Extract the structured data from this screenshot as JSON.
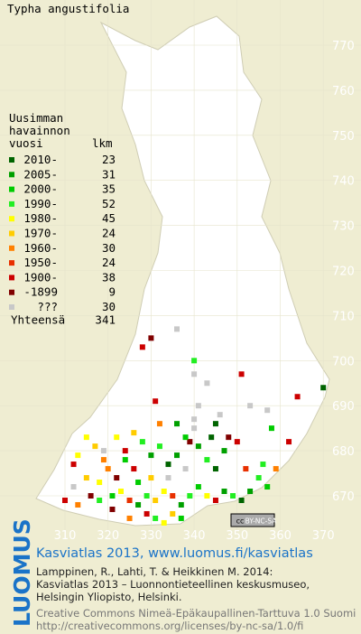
{
  "title": "Typha angustifolia",
  "grid": {
    "north": [
      770,
      760,
      750,
      740,
      730,
      720,
      710,
      700,
      690,
      680,
      670
    ],
    "east": [
      310,
      320,
      330,
      340,
      350,
      360,
      370
    ]
  },
  "legend": {
    "heading": [
      "Uusimman",
      "havainnon",
      "vuosi"
    ],
    "count_heading": "lkm",
    "rows": [
      {
        "label": "2010-",
        "count": 23,
        "color": "#006400"
      },
      {
        "label": "2005-",
        "count": 31,
        "color": "#00a000"
      },
      {
        "label": "2000-",
        "count": 35,
        "color": "#00cc00"
      },
      {
        "label": "1990-",
        "count": 52,
        "color": "#22ee22"
      },
      {
        "label": "1980-",
        "count": 45,
        "color": "#ffff00"
      },
      {
        "label": "1970-",
        "count": 24,
        "color": "#ffcc00"
      },
      {
        "label": "1960-",
        "count": 30,
        "color": "#ff8000"
      },
      {
        "label": "1950-",
        "count": 24,
        "color": "#e83000"
      },
      {
        "label": "1900-",
        "count": 38,
        "color": "#cc0000"
      },
      {
        "label": "-1899",
        "count": 9,
        "color": "#800000"
      },
      {
        "label": "???",
        "count": 30,
        "color": "#c8c8c8"
      }
    ],
    "total_label": "Yhteensä",
    "total": 341
  },
  "occurrences": [
    [
      328,
      703,
      8
    ],
    [
      330,
      705,
      9
    ],
    [
      336,
      707,
      10
    ],
    [
      340,
      700,
      3
    ],
    [
      340,
      697,
      10
    ],
    [
      351,
      697,
      8
    ],
    [
      343,
      695,
      10
    ],
    [
      341,
      690,
      10
    ],
    [
      346,
      688,
      10
    ],
    [
      353,
      690,
      10
    ],
    [
      364,
      692,
      8
    ],
    [
      370,
      694,
      0
    ],
    [
      357,
      689,
      10
    ],
    [
      331,
      691,
      8
    ],
    [
      340,
      687,
      10
    ],
    [
      345,
      686,
      0
    ],
    [
      350,
      682,
      8
    ],
    [
      362,
      682,
      8
    ],
    [
      339,
      682,
      9
    ],
    [
      358,
      685,
      2
    ],
    [
      315,
      683,
      4
    ],
    [
      317,
      681,
      5
    ],
    [
      313,
      679,
      4
    ],
    [
      319,
      678,
      6
    ],
    [
      322,
      683,
      4
    ],
    [
      324,
      680,
      8
    ],
    [
      326,
      684,
      5
    ],
    [
      328,
      682,
      3
    ],
    [
      330,
      679,
      1
    ],
    [
      332,
      681,
      3
    ],
    [
      334,
      677,
      0
    ],
    [
      336,
      679,
      1
    ],
    [
      338,
      683,
      2
    ],
    [
      341,
      681,
      1
    ],
    [
      343,
      678,
      3
    ],
    [
      345,
      676,
      0
    ],
    [
      347,
      680,
      1
    ],
    [
      326,
      676,
      8
    ],
    [
      322,
      674,
      9
    ],
    [
      320,
      676,
      6
    ],
    [
      318,
      673,
      4
    ],
    [
      315,
      674,
      5
    ],
    [
      312,
      672,
      10
    ],
    [
      310,
      669,
      8
    ],
    [
      313,
      668,
      6
    ],
    [
      316,
      670,
      9
    ],
    [
      318,
      669,
      3
    ],
    [
      321,
      670,
      2
    ],
    [
      323,
      671,
      4
    ],
    [
      325,
      669,
      7
    ],
    [
      327,
      668,
      1
    ],
    [
      329,
      670,
      3
    ],
    [
      331,
      669,
      5
    ],
    [
      333,
      671,
      4
    ],
    [
      335,
      670,
      7
    ],
    [
      337,
      668,
      1
    ],
    [
      339,
      670,
      3
    ],
    [
      341,
      672,
      2
    ],
    [
      343,
      670,
      4
    ],
    [
      345,
      669,
      8
    ],
    [
      347,
      671,
      1
    ],
    [
      349,
      670,
      3
    ],
    [
      351,
      669,
      0
    ],
    [
      353,
      671,
      1
    ],
    [
      355,
      674,
      3
    ],
    [
      357,
      672,
      2
    ],
    [
      352,
      676,
      7
    ],
    [
      356,
      677,
      3
    ],
    [
      359,
      676,
      6
    ],
    [
      329,
      666,
      8
    ],
    [
      331,
      665,
      3
    ],
    [
      333,
      664,
      4
    ],
    [
      335,
      666,
      5
    ],
    [
      337,
      665,
      2
    ],
    [
      325,
      665,
      6
    ],
    [
      321,
      667,
      9
    ],
    [
      327,
      673,
      2
    ],
    [
      330,
      674,
      5
    ],
    [
      334,
      674,
      10
    ],
    [
      338,
      676,
      10
    ],
    [
      319,
      680,
      10
    ],
    [
      324,
      678,
      2
    ],
    [
      312,
      677,
      8
    ],
    [
      340,
      685,
      10
    ],
    [
      344,
      683,
      0
    ],
    [
      348,
      683,
      9
    ],
    [
      336,
      686,
      1
    ],
    [
      332,
      686,
      6
    ]
  ],
  "badge": {
    "cc": "cc",
    "license": "BY-NC-SA"
  },
  "footer": {
    "logo": "LUOMUS",
    "headline": "Kasviatlas 2013, www.luomus.fi/kasviatlas",
    "citation": [
      "Lamppinen, R., Lahti, T. & Heikkinen M. 2014:",
      "Kasviatlas 2013 – Luonnontieteellinen keskusmuseo,",
      "Helsingin Yliopisto, Helsinki."
    ],
    "license": [
      "Creative Commons Nimeä-Epäkaupallinen-Tarttuva 1.0 Suomi",
      "http://creativecommons.org/licenses/by-nc-sa/1.0/fi"
    ]
  }
}
